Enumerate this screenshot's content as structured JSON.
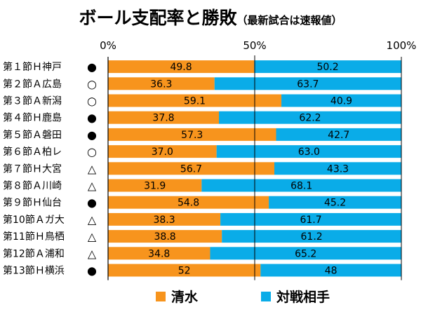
{
  "title": "ボール支配率と勝敗",
  "subtitle": "（最新試合は速報値）",
  "chart_data": {
    "type": "bar",
    "orientation": "horizontal",
    "stacked": true,
    "percent_stacked": true,
    "title": "ボール支配率と勝敗",
    "subtitle": "（最新試合は速報値）",
    "xlim": [
      0,
      100
    ],
    "x_ticks": [
      "0%",
      "50%",
      "100%"
    ],
    "x_axis_position": "top",
    "categories": [
      "第１節Ｈ神戸",
      "第２節Ａ広島",
      "第３節Ａ新潟",
      "第４節Ｈ鹿島",
      "第５節Ａ磐田",
      "第６節Ａ柏レ",
      "第７節Ｈ大宮",
      "第８節Ａ川崎",
      "第９節Ｈ仙台",
      "第10節Ａガ大",
      "第11節Ｈ鳥栖",
      "第12節Ａ浦和",
      "第13節Ｈ横浜"
    ],
    "results": [
      "●",
      "○",
      "○",
      "●",
      "●",
      "○",
      "△",
      "△",
      "●",
      "△",
      "△",
      "△",
      "●"
    ],
    "series": [
      {
        "name": "清水",
        "color": "#F7941D",
        "values": [
          49.8,
          36.3,
          59.1,
          37.8,
          57.3,
          37.0,
          56.7,
          31.9,
          54.8,
          38.3,
          38.8,
          34.8,
          52
        ],
        "labels": [
          "49.8",
          "36.3",
          "59.1",
          "37.8",
          "57.3",
          "37.0",
          "56.7",
          "31.9",
          "54.8",
          "38.3",
          "38.8",
          "34.8",
          "52"
        ]
      },
      {
        "name": "対戦相手",
        "color": "#0AACE8",
        "values": [
          50.2,
          63.7,
          40.9,
          62.2,
          42.7,
          63.0,
          43.3,
          68.1,
          45.2,
          61.7,
          61.2,
          65.2,
          48
        ],
        "labels": [
          "50.2",
          "63.7",
          "40.9",
          "62.2",
          "42.7",
          "63.0",
          "43.3",
          "68.1",
          "45.2",
          "61.7",
          "61.2",
          "65.2",
          "48"
        ]
      }
    ],
    "legend_position": "bottom"
  }
}
